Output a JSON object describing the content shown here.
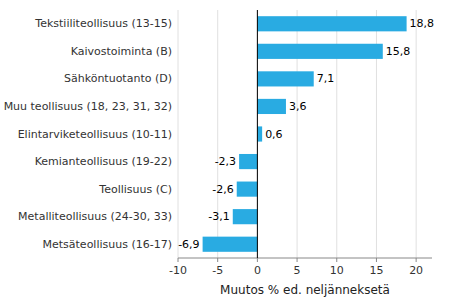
{
  "chart_data": {
    "type": "bar",
    "orientation": "horizontal",
    "categories": [
      "Metsäteollisuus (16-17)",
      "Metalliteollisuus (24-30, 33)",
      "Teollisuus (C)",
      "Kemianteollisuus (19-22)",
      "Elintarviketeollisuus (10-11)",
      "Muu teollisuus (18, 23, 31, 32)",
      "Sähköntuotanto (D)",
      "Kaivostoiminta (B)",
      "Tekstiiliteollisuus (13-15)"
    ],
    "values": [
      -6.9,
      -3.1,
      -2.6,
      -2.3,
      0.6,
      3.6,
      7.1,
      15.8,
      18.8
    ],
    "value_labels": [
      "-6,9",
      "-3,1",
      "-2,6",
      "-2,3",
      "0,6",
      "3,6",
      "7,1",
      "15,8",
      "18,8"
    ],
    "data_labels": true,
    "color": "#29abe2",
    "xlabel": "Muutos % ed. neljänneksetä",
    "xlim": [
      -10,
      22
    ],
    "xticks": [
      -10,
      -5,
      0,
      5,
      10,
      15,
      20
    ],
    "grid": true
  }
}
